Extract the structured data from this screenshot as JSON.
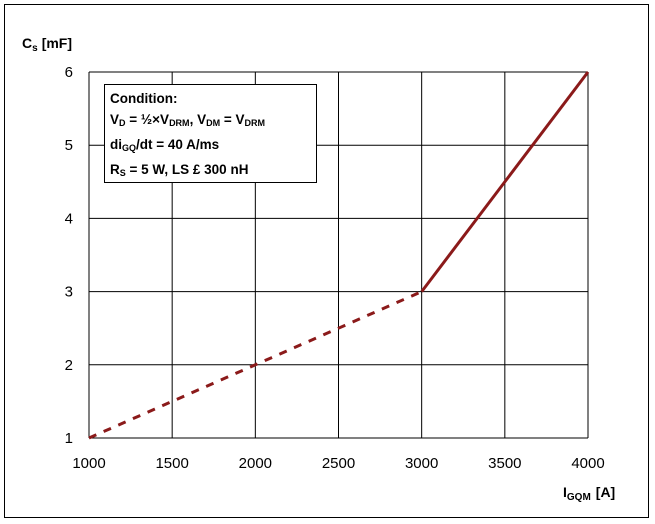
{
  "chart_data": {
    "type": "line",
    "ylabel_main": "C",
    "ylabel_sub": "s",
    "ylabel_unit": "[mF]",
    "xlabel_main": "I",
    "xlabel_sub": "GQM",
    "xlabel_unit": "[A]",
    "xlim": [
      1000,
      4000
    ],
    "ylim": [
      1,
      6
    ],
    "x_ticks": [
      1000,
      1500,
      2000,
      2500,
      3000,
      3500,
      4000
    ],
    "y_ticks": [
      1,
      2,
      3,
      4,
      5,
      6
    ],
    "grid": true,
    "color": "#8b1a1a",
    "series": [
      {
        "style": "dashed",
        "x": [
          1000,
          2000,
          3000
        ],
        "y": [
          1,
          2,
          3
        ]
      },
      {
        "style": "solid",
        "x": [
          3000,
          4000
        ],
        "y": [
          3,
          6
        ]
      }
    ],
    "annotation": {
      "title": "Condition:",
      "line1_a": "V",
      "line1_a_sub": "D",
      "line1_b": " = ½×V",
      "line1_b_sub": "DRM",
      "line1_c": ", V",
      "line1_c_sub": "DM",
      "line1_d": " = V",
      "line1_d_sub": "DRM",
      "line2_a": "di",
      "line2_a_sub": "GQ",
      "line2_b": "/dt = 40 A/ms",
      "line3_a": "R",
      "line3_a_sub": "S",
      "line3_b": " = 5 W, LS £ 300 nH"
    }
  }
}
